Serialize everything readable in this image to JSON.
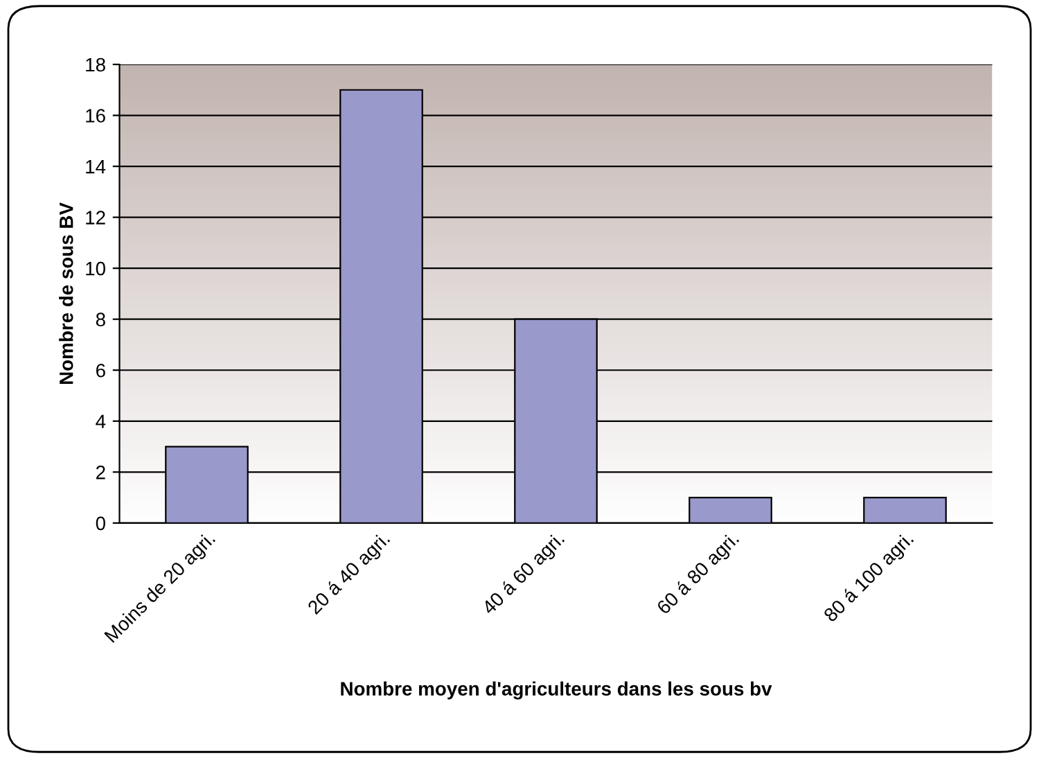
{
  "chart_data": {
    "type": "bar",
    "xlabel": "Nombre moyen d'agriculteurs dans les sous bv",
    "ylabel": "Nombre de sous BV",
    "categories": [
      "Moins de 20 agri.",
      "20 á 40 agri.",
      "40 á 60 agri.",
      "60 á 80 agri.",
      "80 á 100 agri."
    ],
    "values": [
      3,
      17,
      8,
      1,
      1
    ],
    "color": "#9999cc",
    "ylim": [
      0,
      18
    ],
    "yticks": [
      0,
      2,
      4,
      6,
      8,
      10,
      12,
      14,
      16,
      18
    ],
    "grid": "y",
    "legend": false
  }
}
